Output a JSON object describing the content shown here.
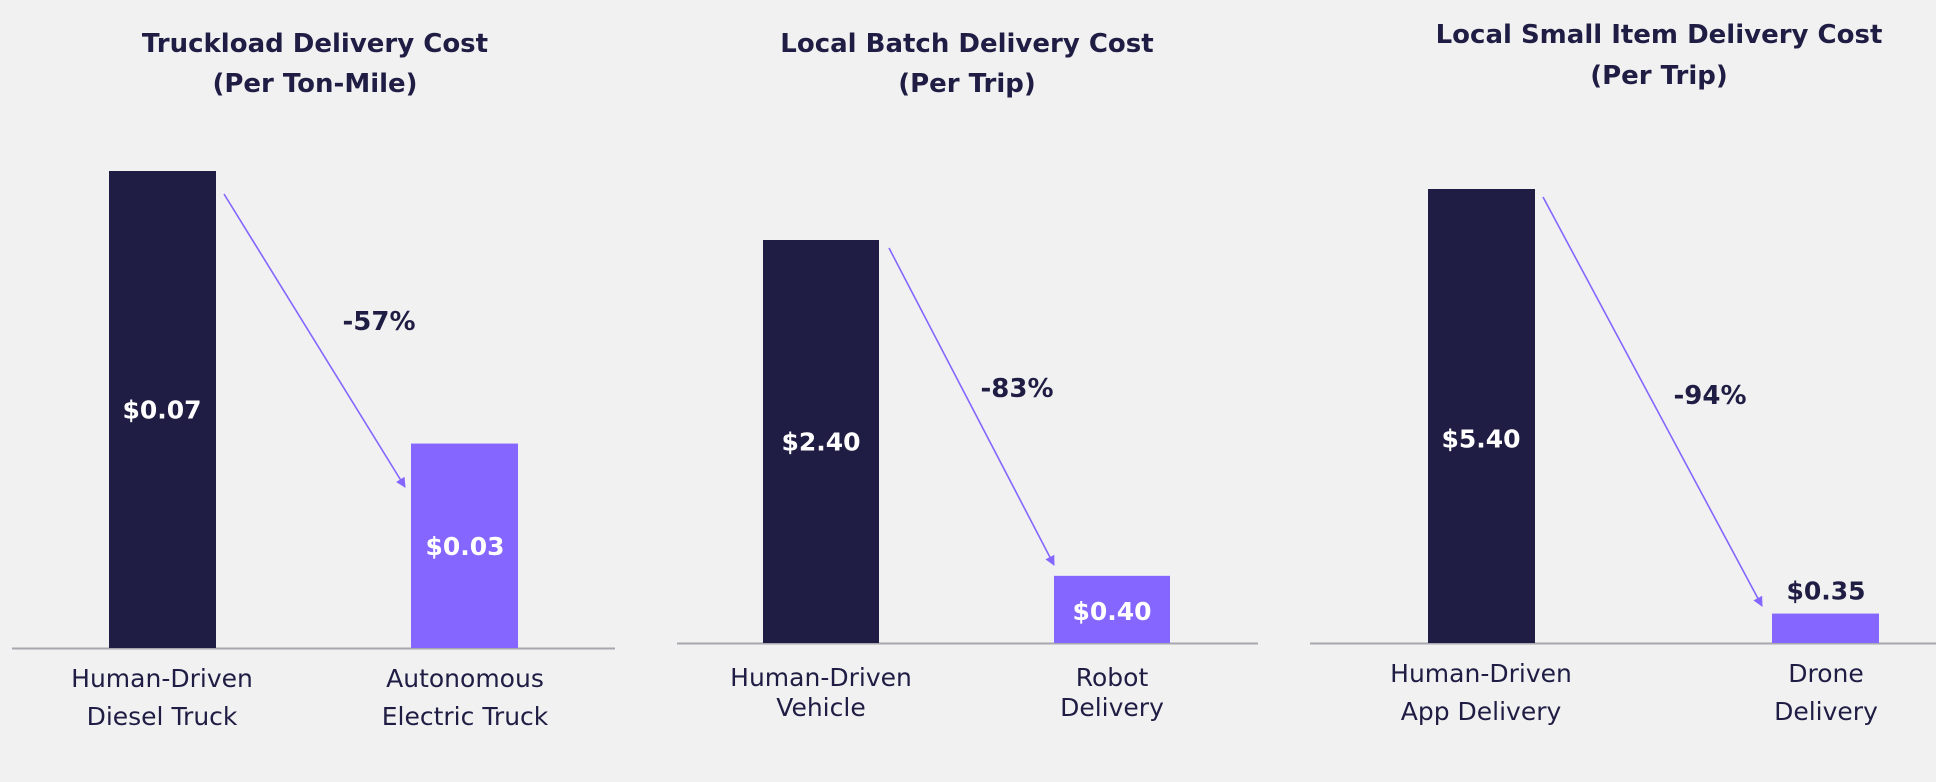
{
  "colors": {
    "background": "#f1f1f1",
    "human": "#1f1d44",
    "autonomous": "#8566ff",
    "baseline": "#a7a7b0",
    "text": "#1f1d44"
  },
  "chart_data": [
    {
      "type": "bar",
      "title": [
        "Truckload Delivery Cost",
        "(Per Ton-Mile)"
      ],
      "categories": [
        [
          "Human-Driven",
          "Diesel Truck"
        ],
        [
          "Autonomous",
          "Electric Truck"
        ]
      ],
      "values": [
        0.07,
        0.03
      ],
      "value_labels": [
        "$0.07",
        "$0.03"
      ],
      "change_label": "-57%"
    },
    {
      "type": "bar",
      "title": [
        "Local Batch Delivery Cost",
        "(Per Trip)"
      ],
      "categories": [
        [
          "Human-Driven",
          "Vehicle"
        ],
        [
          "Robot",
          "Delivery"
        ]
      ],
      "values": [
        2.4,
        0.4
      ],
      "value_labels": [
        "$2.40",
        "$0.40"
      ],
      "change_label": "-83%"
    },
    {
      "type": "bar",
      "title": [
        "Local Small Item Delivery Cost",
        "(Per Trip)"
      ],
      "categories": [
        [
          "Human-Driven",
          "App Delivery"
        ],
        [
          "Drone",
          "Delivery"
        ]
      ],
      "values": [
        5.4,
        0.35
      ],
      "value_labels": [
        "$5.40",
        "$0.35"
      ],
      "change_label": "-94%"
    }
  ]
}
